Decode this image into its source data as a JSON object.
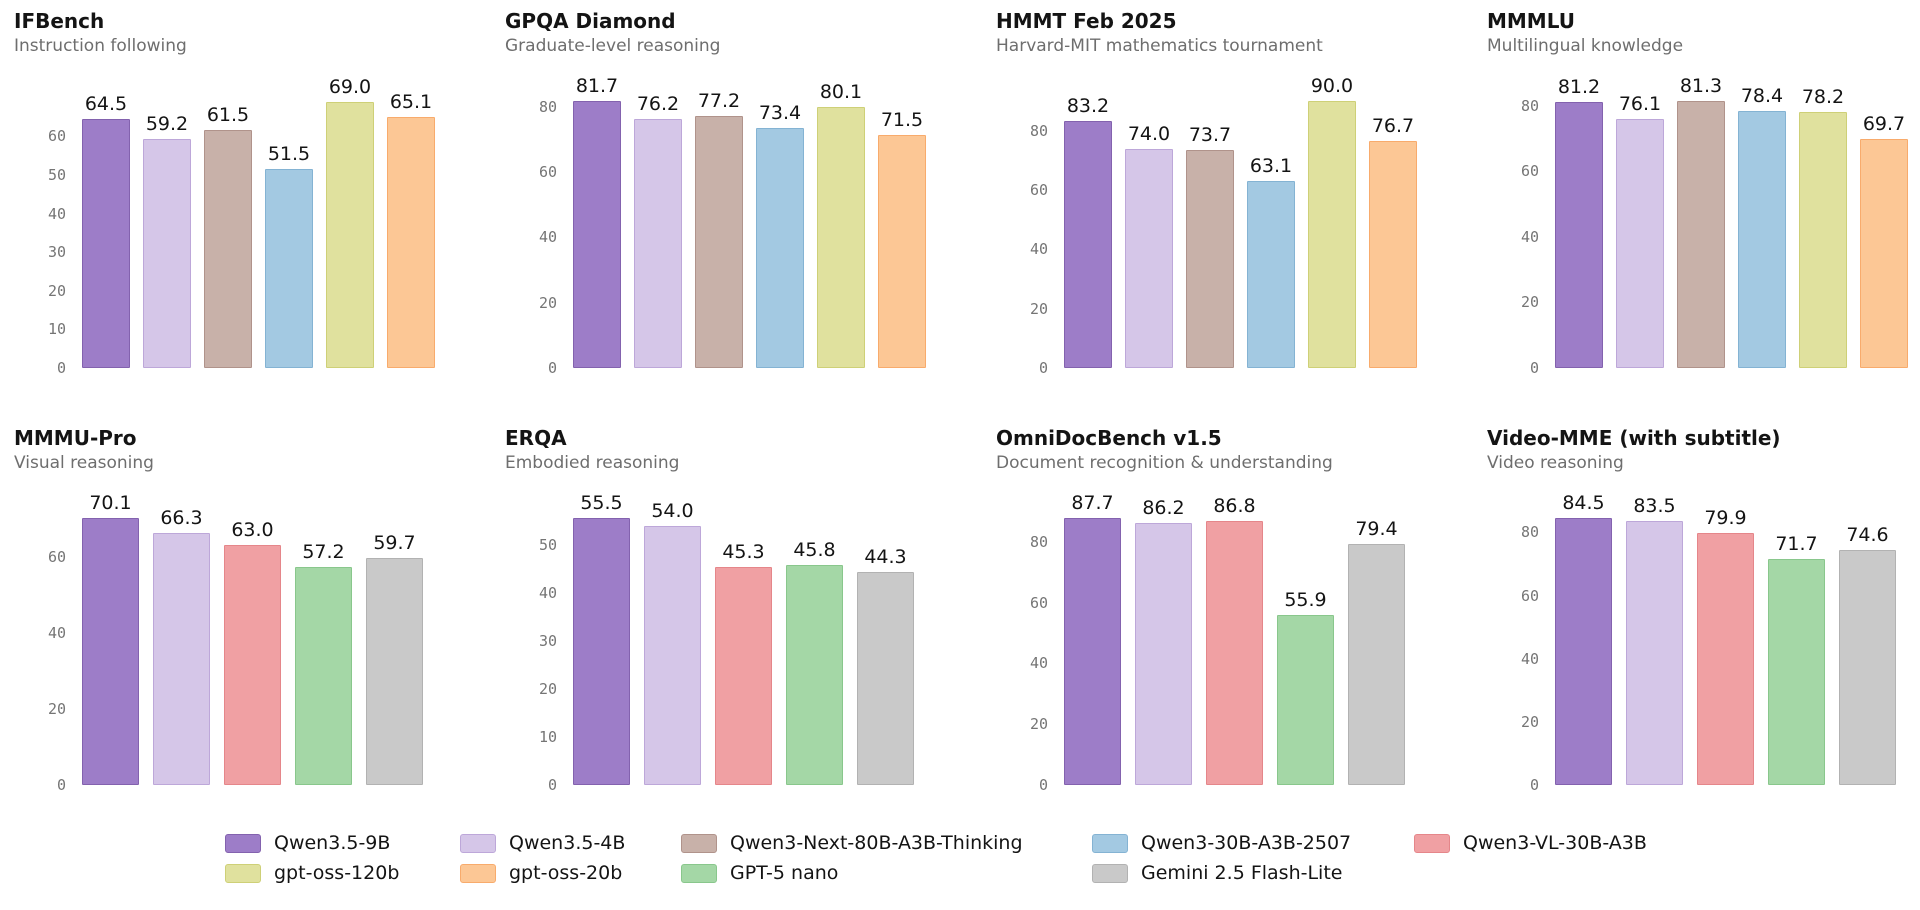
{
  "palette": {
    "Qwen3.5-9B": {
      "fill": "#9d7dc8",
      "edge": "#8362ae"
    },
    "Qwen3.5-4B": {
      "fill": "#d5c6e8",
      "edge": "#bda7d9"
    },
    "Qwen3-Next-80B-A3B-Thinking": {
      "fill": "#c8b1a9",
      "edge": "#b0938b"
    },
    "Qwen3-30B-A3B-2507": {
      "fill": "#a3c9e2",
      "edge": "#84b3d3"
    },
    "Qwen3-VL-30B-A3B": {
      "fill": "#f0a0a3",
      "edge": "#e5868a"
    },
    "gpt-oss-120b": {
      "fill": "#e0e19e",
      "edge": "#ced077"
    },
    "gpt-oss-20b": {
      "fill": "#fcc795",
      "edge": "#f8ab6c"
    },
    "GPT-5 nano": {
      "fill": "#a4d7a6",
      "edge": "#89c78c"
    },
    "Gemini 2.5 Flash-Lite": {
      "fill": "#c9c9c9",
      "edge": "#b2b2b2"
    }
  },
  "chart_data": [
    {
      "type": "bar",
      "title": "IFBench",
      "subtitle": "Instruction following",
      "categories": [
        "Qwen3.5-9B",
        "Qwen3.5-4B",
        "Qwen3-Next-80B-A3B-Thinking",
        "Qwen3-30B-A3B-2507",
        "gpt-oss-120b",
        "gpt-oss-20b"
      ],
      "values": [
        64.5,
        59.2,
        61.5,
        51.5,
        69.0,
        65.1
      ],
      "yticks": [
        0,
        10,
        20,
        30,
        40,
        50,
        60
      ],
      "ylim": [
        0,
        72.5
      ],
      "grid": false,
      "xlabel": "",
      "ylabel": ""
    },
    {
      "type": "bar",
      "title": "GPQA Diamond",
      "subtitle": "Graduate-level reasoning",
      "categories": [
        "Qwen3.5-9B",
        "Qwen3.5-4B",
        "Qwen3-Next-80B-A3B-Thinking",
        "Qwen3-30B-A3B-2507",
        "gpt-oss-120b",
        "gpt-oss-20b"
      ],
      "values": [
        81.7,
        76.2,
        77.2,
        73.4,
        80.1,
        71.5
      ],
      "yticks": [
        0,
        20,
        40,
        60,
        80
      ],
      "ylim": [
        0,
        85.8
      ],
      "grid": false,
      "xlabel": "",
      "ylabel": ""
    },
    {
      "type": "bar",
      "title": "HMMT Feb 2025",
      "subtitle": "Harvard-MIT mathematics tournament",
      "categories": [
        "Qwen3.5-9B",
        "Qwen3.5-4B",
        "Qwen3-Next-80B-A3B-Thinking",
        "Qwen3-30B-A3B-2507",
        "gpt-oss-120b",
        "gpt-oss-20b"
      ],
      "values": [
        83.2,
        74.0,
        73.7,
        63.1,
        90.0,
        76.7
      ],
      "yticks": [
        0,
        20,
        40,
        60,
        80
      ],
      "ylim": [
        0,
        94.5
      ],
      "grid": false,
      "xlabel": "",
      "ylabel": ""
    },
    {
      "type": "bar",
      "title": "MMMLU",
      "subtitle": "Multilingual knowledge",
      "categories": [
        "Qwen3.5-9B",
        "Qwen3.5-4B",
        "Qwen3-Next-80B-A3B-Thinking",
        "Qwen3-30B-A3B-2507",
        "gpt-oss-120b",
        "gpt-oss-20b"
      ],
      "values": [
        81.2,
        76.1,
        81.3,
        78.4,
        78.2,
        69.7
      ],
      "yticks": [
        0,
        20,
        40,
        60,
        80
      ],
      "ylim": [
        0,
        85.4
      ],
      "grid": false,
      "xlabel": "",
      "ylabel": ""
    },
    {
      "type": "bar",
      "title": "MMMU-Pro",
      "subtitle": "Visual reasoning",
      "categories": [
        "Qwen3.5-9B",
        "Qwen3.5-4B",
        "Qwen3-VL-30B-A3B",
        "GPT-5 nano",
        "Gemini 2.5 Flash-Lite"
      ],
      "values": [
        70.1,
        66.3,
        63.0,
        57.2,
        59.7
      ],
      "yticks": [
        0,
        20,
        40,
        60
      ],
      "ylim": [
        0,
        73.6
      ],
      "grid": false,
      "xlabel": "",
      "ylabel": ""
    },
    {
      "type": "bar",
      "title": "ERQA",
      "subtitle": "Embodied reasoning",
      "categories": [
        "Qwen3.5-9B",
        "Qwen3.5-4B",
        "Qwen3-VL-30B-A3B",
        "GPT-5 nano",
        "Gemini 2.5 Flash-Lite"
      ],
      "values": [
        55.5,
        54.0,
        45.3,
        45.8,
        44.3
      ],
      "yticks": [
        0,
        10,
        20,
        30,
        40,
        50
      ],
      "ylim": [
        0,
        58.3
      ],
      "grid": false,
      "xlabel": "",
      "ylabel": ""
    },
    {
      "type": "bar",
      "title": "OmniDocBench v1.5",
      "subtitle": "Document recognition & understanding",
      "categories": [
        "Qwen3.5-9B",
        "Qwen3.5-4B",
        "Qwen3-VL-30B-A3B",
        "GPT-5 nano",
        "Gemini 2.5 Flash-Lite"
      ],
      "values": [
        87.7,
        86.2,
        86.8,
        55.9,
        79.4
      ],
      "yticks": [
        0,
        20,
        40,
        60,
        80
      ],
      "ylim": [
        0,
        92.1
      ],
      "grid": false,
      "xlabel": "",
      "ylabel": ""
    },
    {
      "type": "bar",
      "title": "Video-MME (with subtitle)",
      "subtitle": "Video reasoning",
      "categories": [
        "Qwen3.5-9B",
        "Qwen3.5-4B",
        "Qwen3-VL-30B-A3B",
        "GPT-5 nano",
        "Gemini 2.5 Flash-Lite"
      ],
      "values": [
        84.5,
        83.5,
        79.9,
        71.7,
        74.6
      ],
      "yticks": [
        0,
        20,
        40,
        60,
        80
      ],
      "ylim": [
        0,
        88.7
      ],
      "grid": false,
      "xlabel": "",
      "ylabel": ""
    }
  ],
  "legend": {
    "rows": [
      [
        "Qwen3.5-9B",
        "Qwen3.5-4B",
        "Qwen3-Next-80B-A3B-Thinking",
        "Qwen3-30B-A3B-2507",
        "Qwen3-VL-30B-A3B"
      ],
      [
        "gpt-oss-120b",
        "gpt-oss-20b",
        "GPT-5 nano",
        "Gemini 2.5 Flash-Lite"
      ]
    ]
  }
}
